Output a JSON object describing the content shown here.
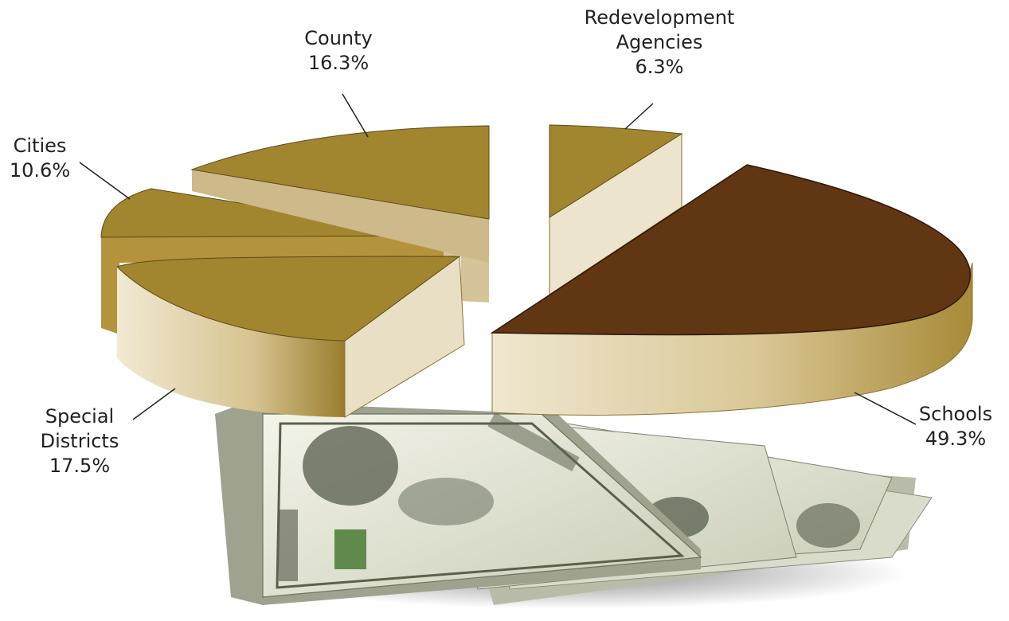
{
  "chart_data": {
    "type": "pie",
    "style": "3d-exploded",
    "slices": [
      {
        "label_lines": [
          "County"
        ],
        "value": 16.3,
        "value_text": "16.3%",
        "color": "#a1862f"
      },
      {
        "label_lines": [
          "Redevelopment",
          "Agencies"
        ],
        "value": 6.3,
        "value_text": "6.3%",
        "color": "#a1862f"
      },
      {
        "label_lines": [
          "Schools"
        ],
        "value": 49.3,
        "value_text": "49.3%",
        "color": "#613612"
      },
      {
        "label_lines": [
          "Special",
          "Districts"
        ],
        "value": 17.5,
        "value_text": "17.5%",
        "color": "#a1862f"
      },
      {
        "label_lines": [
          "Cities"
        ],
        "value": 10.6,
        "value_text": "10.6%",
        "color": "#a1862f"
      }
    ],
    "side_color": "#e5dcc0",
    "side_shadow_color": "#a88a38",
    "background_image": "dollar-bills"
  }
}
